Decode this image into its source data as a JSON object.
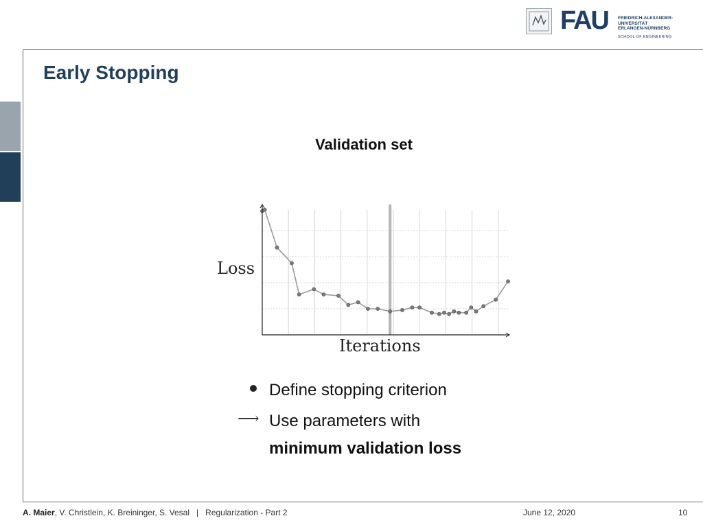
{
  "header": {
    "logo": {
      "mark": "FAU",
      "lines": [
        "FRIEDRICH-ALEXANDER-",
        "UNIVERSITÄT",
        "ERLANGEN-NÜRNBERG"
      ],
      "school": "SCHOOL OF ENGINEERING"
    }
  },
  "slide": {
    "title": "Early Stopping",
    "bullets": [
      {
        "marker": "bullet",
        "text": "Define stopping criterion"
      },
      {
        "marker": "arrow",
        "text": "Use parameters with"
      },
      {
        "marker": "none",
        "text": "minimum validation loss"
      }
    ]
  },
  "chart_data": {
    "type": "line",
    "title": "Validation set",
    "xlabel": "Iterations",
    "ylabel": "Loss",
    "grid": true,
    "stop_marker_x": 0.52,
    "x": [
      0.0,
      0.01,
      0.06,
      0.12,
      0.15,
      0.21,
      0.25,
      0.31,
      0.35,
      0.39,
      0.43,
      0.47,
      0.52,
      0.57,
      0.61,
      0.64,
      0.69,
      0.72,
      0.74,
      0.76,
      0.78,
      0.8,
      0.83,
      0.85,
      0.87,
      0.9,
      0.95,
      1.0
    ],
    "values": [
      0.95,
      0.96,
      0.67,
      0.55,
      0.31,
      0.35,
      0.31,
      0.3,
      0.23,
      0.25,
      0.2,
      0.2,
      0.18,
      0.19,
      0.21,
      0.21,
      0.17,
      0.16,
      0.17,
      0.16,
      0.18,
      0.17,
      0.17,
      0.21,
      0.18,
      0.22,
      0.27,
      0.41
    ],
    "ylim": [
      0,
      1
    ],
    "colors": {
      "line": "#9a9a9a",
      "marker_fill": "#7a7a7a",
      "grid": "#d4d4d4",
      "axis": "#222222",
      "stop": "#b5b5b5"
    }
  },
  "footer": {
    "author_bold": "A. Maier",
    "authors_rest": ", V. Christlein, K. Breininger, S. Vesal",
    "separator": "|",
    "lecture": "Regularization - Part 2",
    "date": "June 12, 2020",
    "page": "10"
  },
  "colors": {
    "accent": "#223f5a",
    "side_tab_light": "#9aa4ad"
  }
}
